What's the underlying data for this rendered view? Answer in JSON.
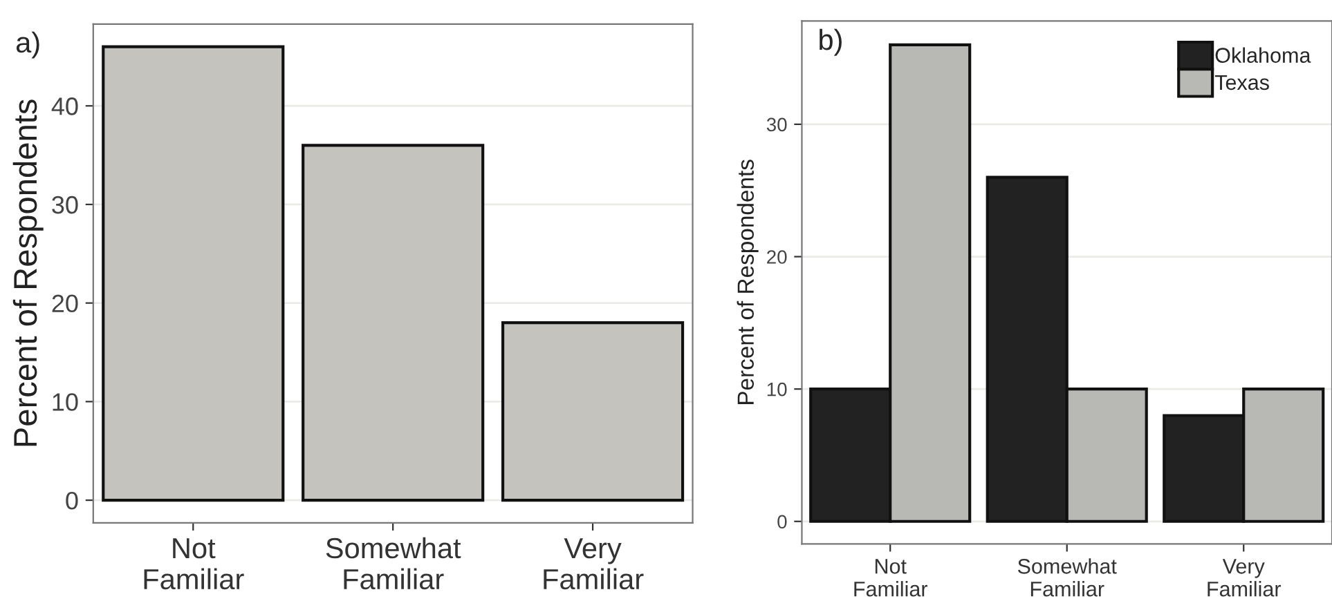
{
  "chart_data": [
    {
      "type": "bar",
      "title": "a)",
      "ylabel": "Percent of Respondents",
      "categories": [
        "Not\nFamiliar",
        "Somewhat\nFamiliar",
        "Very\nFamiliar"
      ],
      "series": [
        {
          "color": "#c4c3be",
          "values": [
            46,
            36,
            18
          ]
        }
      ],
      "ylim": [
        -2.3,
        48.3
      ],
      "yticks": [
        0,
        10,
        20,
        30,
        40
      ],
      "grid": "y",
      "legend": false
    },
    {
      "type": "bar",
      "title": "b)",
      "ylabel": "Percent of Respondents",
      "categories": [
        "Not\nFamiliar",
        "Somewhat\nFamiliar",
        "Very\nFamiliar"
      ],
      "series": [
        {
          "name": "Oklahoma",
          "color": "#222222",
          "values": [
            10,
            26,
            8
          ]
        },
        {
          "name": "Texas",
          "color": "#b8b8b4",
          "values": [
            36,
            10,
            10
          ]
        }
      ],
      "ylim": [
        -1.7,
        37.8
      ],
      "yticks": [
        0,
        10,
        20,
        30
      ],
      "grid": "y",
      "legend": "top right"
    }
  ]
}
